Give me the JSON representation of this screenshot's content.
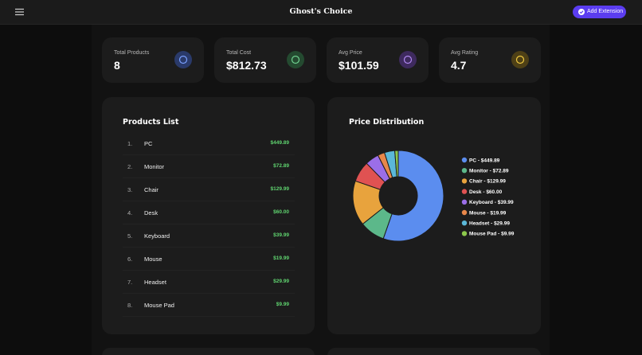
{
  "header": {
    "title": "Ghost's Choice",
    "button": "Add Extension"
  },
  "stats": [
    {
      "label": "Total Products",
      "value": "8"
    },
    {
      "label": "Total Cost",
      "value": "$812.73"
    },
    {
      "label": "Avg Price",
      "value": "$101.59"
    },
    {
      "label": "Avg Rating",
      "value": "4.7"
    }
  ],
  "products": {
    "title": "Products List",
    "rows": [
      [
        "1.",
        "PC",
        "$449.89"
      ],
      [
        "2.",
        "Monitor",
        "$72.89"
      ],
      [
        "3.",
        "Chair",
        "$129.99"
      ],
      [
        "4.",
        "Desk",
        "$60.00"
      ],
      [
        "5.",
        "Keyboard",
        "$39.99"
      ],
      [
        "6.",
        "Mouse",
        "$19.99"
      ],
      [
        "7.",
        "Headset",
        "$29.99"
      ],
      [
        "8.",
        "Mouse Pad",
        "$9.99"
      ]
    ]
  },
  "chart_data": {
    "type": "donut",
    "title": "Price Distribution",
    "values": [
      449.89,
      72.89,
      129.99,
      60.0,
      39.99,
      19.99,
      29.99,
      9.99
    ],
    "value_labels": [
      "PC - $449.89",
      "Monitor - $72.89",
      "Chair - $129.99",
      "Desk - $60.00",
      "Keyboard - $39.99",
      "Mouse - $19.99",
      "Headset - $29.99",
      "Mouse Pad - $9.99"
    ],
    "colors": [
      "#5b8def",
      "#5cb88a",
      "#e8a33d",
      "#e05252",
      "#9b6ee8",
      "#e8874a",
      "#5bb8d8",
      "#8cc84b"
    ]
  }
}
